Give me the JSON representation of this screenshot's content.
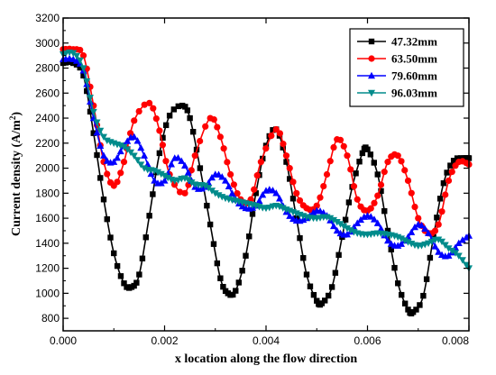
{
  "chart_data": {
    "type": "line",
    "xlabel": "x location along the flow direction",
    "ylabel_main": "Current density (A/m",
    "ylabel_sup": "2",
    "ylabel_close": ")",
    "xlim": [
      0,
      0.008
    ],
    "ylim": [
      700,
      3200
    ],
    "x_ticks": [
      "0.000",
      "0.002",
      "0.004",
      "0.006",
      "0.008"
    ],
    "y_ticks": [
      "800",
      "1000",
      "1200",
      "1400",
      "1600",
      "1800",
      "2000",
      "2200",
      "2400",
      "2600",
      "2800",
      "3000",
      "3200"
    ],
    "legend_position": "top-right",
    "series": [
      {
        "name": "47.32mm",
        "color": "#000000",
        "marker": "square",
        "points": [
          [
            0,
            2840
          ],
          [
            0.0002,
            2840
          ],
          [
            0.0004,
            2740
          ],
          [
            0.0006,
            2280
          ],
          [
            0.0008,
            1750
          ],
          [
            0.001,
            1320
          ],
          [
            0.0012,
            1080
          ],
          [
            0.00135,
            1050
          ],
          [
            0.0015,
            1150
          ],
          [
            0.0017,
            1620
          ],
          [
            0.0019,
            2120
          ],
          [
            0.0021,
            2420
          ],
          [
            0.00235,
            2500
          ],
          [
            0.0025,
            2400
          ],
          [
            0.0027,
            2000
          ],
          [
            0.0029,
            1550
          ],
          [
            0.0031,
            1120
          ],
          [
            0.00325,
            1000
          ],
          [
            0.0034,
            1020
          ],
          [
            0.0036,
            1300
          ],
          [
            0.0038,
            1800
          ],
          [
            0.004,
            2180
          ],
          [
            0.0042,
            2310
          ],
          [
            0.0044,
            2050
          ],
          [
            0.0046,
            1600
          ],
          [
            0.0048,
            1150
          ],
          [
            0.005,
            940
          ],
          [
            0.0051,
            920
          ],
          [
            0.0053,
            1050
          ],
          [
            0.0055,
            1450
          ],
          [
            0.0057,
            1850
          ],
          [
            0.0059,
            2120
          ],
          [
            0.006,
            2150
          ],
          [
            0.0062,
            1950
          ],
          [
            0.0064,
            1500
          ],
          [
            0.0066,
            1080
          ],
          [
            0.0068,
            870
          ],
          [
            0.0069,
            850
          ],
          [
            0.0071,
            980
          ],
          [
            0.0073,
            1450
          ],
          [
            0.0075,
            1880
          ],
          [
            0.0077,
            2060
          ],
          [
            0.0079,
            2080
          ],
          [
            0.008,
            2080
          ]
        ]
      },
      {
        "name": "63.50mm",
        "color": "#ff0000",
        "marker": "circle",
        "points": [
          [
            0,
            2950
          ],
          [
            0.0002,
            2950
          ],
          [
            0.0004,
            2900
          ],
          [
            0.0006,
            2500
          ],
          [
            0.0008,
            2050
          ],
          [
            0.001,
            1860
          ],
          [
            0.0012,
            2050
          ],
          [
            0.0014,
            2380
          ],
          [
            0.0017,
            2520
          ],
          [
            0.0019,
            2300
          ],
          [
            0.0021,
            1950
          ],
          [
            0.0024,
            1800
          ],
          [
            0.0026,
            2100
          ],
          [
            0.0029,
            2400
          ],
          [
            0.0031,
            2250
          ],
          [
            0.0033,
            1950
          ],
          [
            0.0035,
            1750
          ],
          [
            0.0037,
            1750
          ],
          [
            0.0039,
            2050
          ],
          [
            0.0042,
            2310
          ],
          [
            0.0044,
            2100
          ],
          [
            0.0046,
            1800
          ],
          [
            0.0048,
            1680
          ],
          [
            0.005,
            1700
          ],
          [
            0.0052,
            1950
          ],
          [
            0.0054,
            2230
          ],
          [
            0.0056,
            2100
          ],
          [
            0.0058,
            1750
          ],
          [
            0.006,
            1660
          ],
          [
            0.0062,
            1780
          ],
          [
            0.0064,
            2050
          ],
          [
            0.0066,
            2100
          ],
          [
            0.0068,
            1900
          ],
          [
            0.007,
            1600
          ],
          [
            0.0072,
            1480
          ],
          [
            0.0074,
            1550
          ],
          [
            0.0076,
            1900
          ],
          [
            0.0078,
            2050
          ],
          [
            0.008,
            2030
          ]
        ]
      },
      {
        "name": "79.60mm",
        "color": "#0000ff",
        "marker": "triangle-up",
        "points": [
          [
            0,
            2870
          ],
          [
            0.0002,
            2870
          ],
          [
            0.0004,
            2780
          ],
          [
            0.0006,
            2400
          ],
          [
            0.0008,
            2100
          ],
          [
            0.001,
            2050
          ],
          [
            0.0012,
            2180
          ],
          [
            0.0014,
            2250
          ],
          [
            0.0016,
            2100
          ],
          [
            0.0018,
            1900
          ],
          [
            0.002,
            1900
          ],
          [
            0.0022,
            2080
          ],
          [
            0.0024,
            2020
          ],
          [
            0.0026,
            1850
          ],
          [
            0.0028,
            1850
          ],
          [
            0.003,
            1950
          ],
          [
            0.0032,
            1900
          ],
          [
            0.0034,
            1750
          ],
          [
            0.0036,
            1680
          ],
          [
            0.0038,
            1700
          ],
          [
            0.004,
            1820
          ],
          [
            0.0042,
            1800
          ],
          [
            0.0044,
            1650
          ],
          [
            0.0046,
            1580
          ],
          [
            0.0048,
            1600
          ],
          [
            0.005,
            1660
          ],
          [
            0.0052,
            1620
          ],
          [
            0.0054,
            1500
          ],
          [
            0.0056,
            1470
          ],
          [
            0.0058,
            1560
          ],
          [
            0.006,
            1620
          ],
          [
            0.0062,
            1560
          ],
          [
            0.0064,
            1420
          ],
          [
            0.0066,
            1380
          ],
          [
            0.0068,
            1450
          ],
          [
            0.007,
            1550
          ],
          [
            0.0072,
            1480
          ],
          [
            0.0074,
            1330
          ],
          [
            0.0076,
            1300
          ],
          [
            0.0078,
            1400
          ],
          [
            0.008,
            1460
          ]
        ]
      },
      {
        "name": "96.03mm",
        "color": "#008b8b",
        "marker": "triangle-down",
        "points": [
          [
            0,
            2910
          ],
          [
            0.0002,
            2920
          ],
          [
            0.0004,
            2800
          ],
          [
            0.0006,
            2450
          ],
          [
            0.0008,
            2250
          ],
          [
            0.001,
            2200
          ],
          [
            0.0012,
            2170
          ],
          [
            0.0014,
            2100
          ],
          [
            0.0016,
            2000
          ],
          [
            0.0018,
            1980
          ],
          [
            0.002,
            1940
          ],
          [
            0.0022,
            1900
          ],
          [
            0.0024,
            1920
          ],
          [
            0.0026,
            1870
          ],
          [
            0.0028,
            1860
          ],
          [
            0.003,
            1800
          ],
          [
            0.0032,
            1760
          ],
          [
            0.0034,
            1740
          ],
          [
            0.0036,
            1720
          ],
          [
            0.0038,
            1700
          ],
          [
            0.004,
            1680
          ],
          [
            0.0042,
            1700
          ],
          [
            0.0044,
            1670
          ],
          [
            0.0046,
            1640
          ],
          [
            0.0048,
            1610
          ],
          [
            0.005,
            1600
          ],
          [
            0.0052,
            1610
          ],
          [
            0.0054,
            1570
          ],
          [
            0.0056,
            1520
          ],
          [
            0.0058,
            1480
          ],
          [
            0.006,
            1470
          ],
          [
            0.0062,
            1480
          ],
          [
            0.0064,
            1470
          ],
          [
            0.0066,
            1450
          ],
          [
            0.0068,
            1410
          ],
          [
            0.007,
            1380
          ],
          [
            0.0072,
            1400
          ],
          [
            0.0074,
            1430
          ],
          [
            0.0076,
            1360
          ],
          [
            0.0078,
            1300
          ],
          [
            0.008,
            1200
          ]
        ]
      }
    ]
  }
}
